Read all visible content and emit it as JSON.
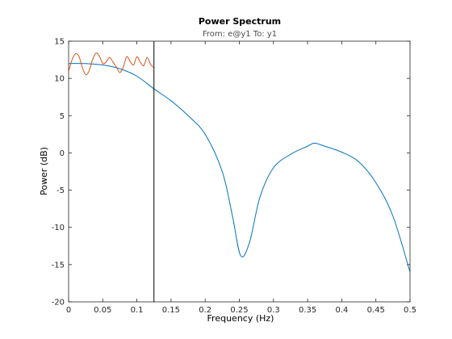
{
  "chart_data": {
    "type": "line",
    "title": "Power Spectrum",
    "subtitle": "From: e@y1  To: y1",
    "xlabel": "Frequency  (Hz)",
    "ylabel": "Power (dB)",
    "xlim": [
      0,
      0.5
    ],
    "ylim": [
      -20,
      15
    ],
    "xticks": [
      0,
      0.05,
      0.1,
      0.15,
      0.2,
      0.25,
      0.3,
      0.35,
      0.4,
      0.45,
      0.5
    ],
    "xtick_labels": [
      "0",
      "0.05",
      "0.1",
      "0.15",
      "0.2",
      "0.25",
      "0.3",
      "0.35",
      "0.4",
      "0.45",
      "0.5"
    ],
    "yticks": [
      15,
      10,
      5,
      0,
      -5,
      -10,
      -15,
      -20
    ],
    "ytick_labels": [
      "15",
      "10",
      "5",
      "0",
      "-5",
      "-10",
      "-15",
      "-20"
    ],
    "grid": false,
    "vertical_line_x": 0.125,
    "series": [
      {
        "color": "#0072BD",
        "x": [
          0,
          0.025,
          0.05,
          0.075,
          0.1,
          0.125,
          0.15,
          0.175,
          0.2,
          0.225,
          0.24,
          0.252,
          0.265,
          0.28,
          0.3,
          0.325,
          0.35,
          0.36,
          0.375,
          0.4,
          0.425,
          0.45,
          0.475,
          0.5
        ],
        "y": [
          12.0,
          12.0,
          11.8,
          11.3,
          10.3,
          8.6,
          7.0,
          5.0,
          2.5,
          -2.5,
          -8.5,
          -13.8,
          -12.0,
          -6.0,
          -2.0,
          -0.2,
          0.9,
          1.3,
          0.9,
          0.1,
          -1.2,
          -4.0,
          -8.5,
          -16.0
        ]
      },
      {
        "color": "#D95319",
        "x": [
          0,
          0.005,
          0.01,
          0.015,
          0.02,
          0.025,
          0.03,
          0.035,
          0.04,
          0.045,
          0.05,
          0.055,
          0.06,
          0.065,
          0.07,
          0.075,
          0.08,
          0.085,
          0.09,
          0.095,
          0.1,
          0.105,
          0.11,
          0.115,
          0.12,
          0.125
        ],
        "y": [
          10.9,
          12.5,
          13.3,
          13.0,
          11.5,
          10.5,
          11.0,
          12.5,
          13.4,
          13.0,
          12.0,
          12.2,
          12.8,
          12.2,
          11.5,
          10.8,
          11.5,
          12.9,
          12.3,
          11.8,
          12.9,
          12.2,
          11.7,
          12.8,
          11.9,
          11.4
        ]
      }
    ]
  }
}
